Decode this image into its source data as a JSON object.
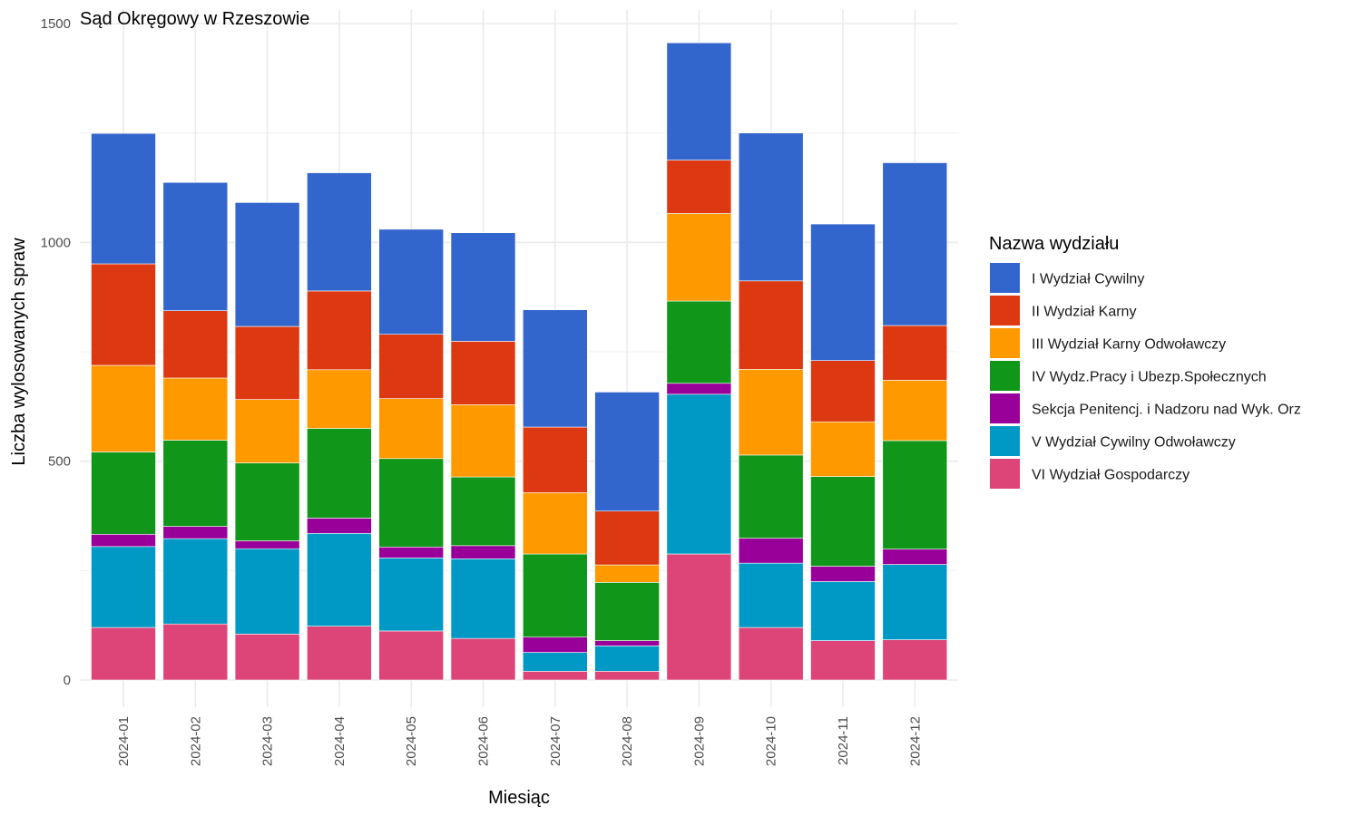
{
  "chart_data": {
    "type": "bar",
    "stacked": true,
    "title": "Sąd Okręgowy w Rzeszowie",
    "xlabel": "Miesiąc",
    "ylabel": "Liczba wylosowanych spraw",
    "ylim": [
      0,
      1500
    ],
    "yticks": [
      0,
      500,
      1000,
      1500
    ],
    "grid": true,
    "legend_position": "right",
    "legend_title": "Nazwa wydziału",
    "categories": [
      "2024-01",
      "2024-02",
      "2024-03",
      "2024-04",
      "2024-05",
      "2024-06",
      "2024-07",
      "2024-08",
      "2024-09",
      "2024-10",
      "2024-11",
      "2024-12"
    ],
    "series": [
      {
        "name": "I Wydział Cywilny",
        "color": "#3366CC",
        "values": [
          298,
          293,
          283,
          270,
          240,
          248,
          268,
          272,
          268,
          338,
          312,
          372
        ]
      },
      {
        "name": "II Wydział Karny",
        "color": "#DC3912",
        "values": [
          232,
          154,
          167,
          180,
          147,
          145,
          150,
          123,
          122,
          202,
          140,
          125
        ]
      },
      {
        "name": "III Wydział Karny Odwoławczy",
        "color": "#FF9900",
        "values": [
          198,
          142,
          145,
          134,
          137,
          165,
          140,
          40,
          200,
          196,
          125,
          138
        ]
      },
      {
        "name": "IV Wydz.Pracy i Ubezp.Społecznych",
        "color": "#109618",
        "values": [
          188,
          197,
          178,
          205,
          202,
          157,
          190,
          133,
          188,
          190,
          205,
          248
        ]
      },
      {
        "name": "Sekcja Penitencj. i Nadzoru nad Wyk. Orz",
        "color": "#990099",
        "values": [
          28,
          28,
          18,
          35,
          25,
          30,
          35,
          12,
          25,
          57,
          35,
          35
        ]
      },
      {
        "name": "V Wydział Cywilny Odwoławczy",
        "color": "#0099C6",
        "values": [
          185,
          195,
          195,
          212,
          167,
          182,
          43,
          58,
          365,
          147,
          135,
          172
        ]
      },
      {
        "name": "VI Wydział Gospodarczy",
        "color": "#DD4477",
        "values": [
          120,
          128,
          105,
          123,
          112,
          95,
          20,
          20,
          288,
          120,
          90,
          92
        ]
      }
    ]
  }
}
